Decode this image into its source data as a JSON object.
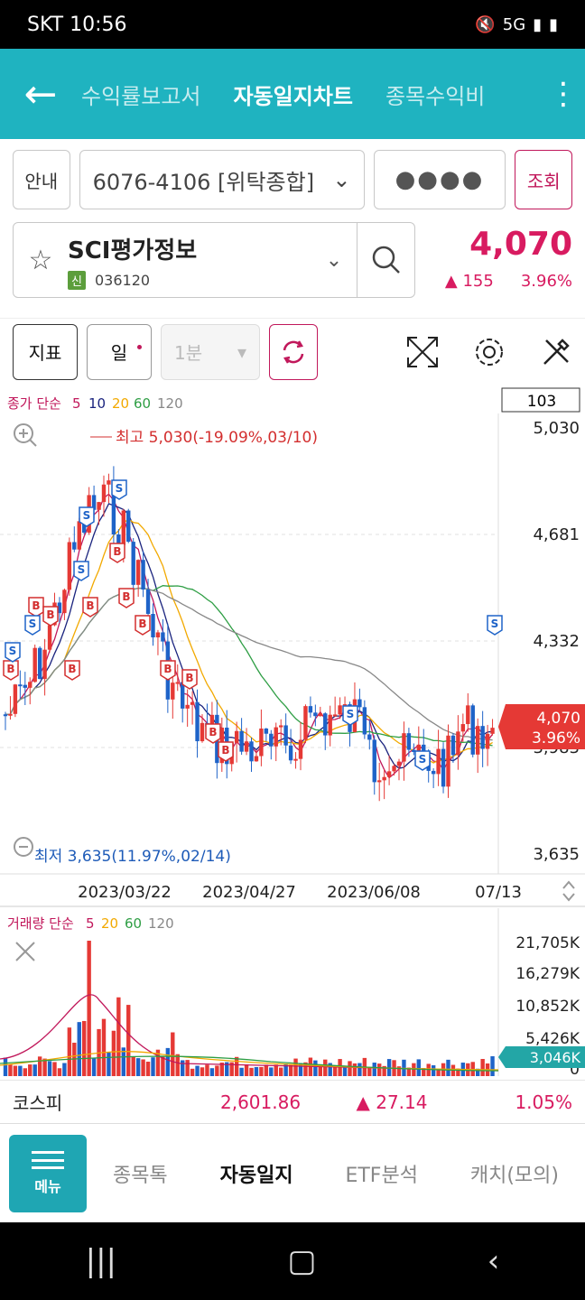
{
  "status": {
    "carrier_time": "SKT 10:56",
    "icons": "5G"
  },
  "topbar": {
    "tabs": [
      "수익률보고서",
      "자동일지차트",
      "종목수익비"
    ]
  },
  "account": {
    "guide": "안내",
    "number": "6076-4106 [위탁종합]",
    "password": "●●●●",
    "query": "조회"
  },
  "stock": {
    "name": "SCI평가정보",
    "tag": "신",
    "code": "036120",
    "price": "4,070",
    "change": "155",
    "change_pct": "3.96%"
  },
  "toolbar": {
    "indicator": "지표",
    "period": "일",
    "interval": "1분"
  },
  "chart": {
    "legend_label": "종가 단순",
    "legend_items": [
      "5",
      "10",
      "20",
      "60",
      "120"
    ],
    "legend_colors": [
      "#c1185b",
      "#1a237e",
      "#f2a900",
      "#2e9e44",
      "#888888"
    ],
    "count_box": "103",
    "y_ticks": [
      "5,030",
      "4,681",
      "4,332",
      "3,983",
      "3,635"
    ],
    "x_ticks": [
      "2023/03/22",
      "2023/04/27",
      "2023/06/08",
      "07/13"
    ],
    "high_note": "최고 5,030(-19.09%,03/10)",
    "low_note": "최저 3,635(11.97%,02/14)",
    "price_tag": "4,070",
    "price_tag_pct": "3.96%",
    "vol_legend_label": "거래량 단순",
    "vol_legend_items": [
      "5",
      "20",
      "60",
      "120"
    ],
    "vol_ticks": [
      "21,705K",
      "16,279K",
      "10,852K",
      "5,426K",
      "0"
    ],
    "vol_tag": "3,046K"
  },
  "kospi": {
    "label": "코스피",
    "value": "2,601.86",
    "change": "27.14",
    "pct": "1.05%"
  },
  "bottomnav": {
    "menu": "메뉴",
    "items": [
      "종목톡",
      "자동일지",
      "ETF분석",
      "캐치(모의)"
    ]
  }
}
